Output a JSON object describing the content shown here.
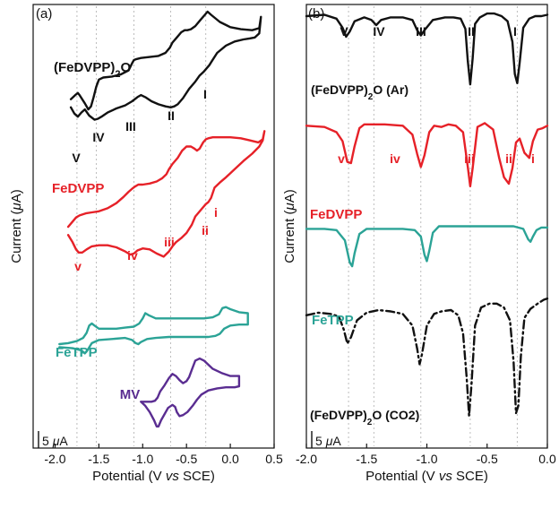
{
  "chart_data": [
    {
      "type": "line",
      "panel_label": "(a)",
      "xlabel": "Potential (V vs SCE)",
      "ylabel": "Current (μA)",
      "xlim": [
        -2.25,
        0.5
      ],
      "x_ticks": [
        "-2.0",
        "-1.5",
        "-1.0",
        "-0.5",
        "0.0",
        "0.5"
      ],
      "x_tick_values": [
        -2.0,
        -1.5,
        -1.0,
        -0.5,
        0.0,
        0.5
      ],
      "scale_bar": "5 μA",
      "grid": "vertical dotted lines at -1.75, -1.53, -1.10, -0.68, -0.28",
      "grid_x": [
        -1.75,
        -1.53,
        -1.1,
        -0.68,
        -0.28
      ],
      "series": [
        {
          "name": "(FeDVPP)2O",
          "color": "#111111",
          "style": "solid",
          "x": [
            -1.82,
            -1.77,
            -1.74,
            -1.72,
            -1.66,
            -1.62,
            -1.59,
            -1.56,
            -1.53,
            -1.5,
            -1.45,
            -1.35,
            -1.25,
            -1.16,
            -1.12,
            -1.1,
            -1.07,
            -1.02,
            -0.92,
            -0.82,
            -0.74,
            -0.69,
            -0.66,
            -0.61,
            -0.56,
            -0.52,
            -0.49,
            -0.45,
            -0.4,
            -0.34,
            -0.29,
            -0.26,
            -0.22,
            -0.12,
            0.0,
            0.12,
            0.25,
            0.33,
            0.35,
            0.33,
            0.28,
            0.22,
            0.15,
            0.05,
            -0.05,
            -0.15,
            -0.21,
            -0.24,
            -0.27,
            -0.3,
            -0.35,
            -0.4,
            -0.47,
            -0.54,
            -0.6,
            -0.64,
            -0.68,
            -0.74,
            -0.82,
            -0.9,
            -0.97,
            -1.02,
            -1.06,
            -1.12,
            -1.2,
            -1.3,
            -1.4,
            -1.47,
            -1.51,
            -1.55,
            -1.61,
            -1.66,
            -1.7,
            -1.74,
            -1.78,
            -1.82
          ],
          "y": [
            0.4,
            0.8,
            1.0,
            0.8,
            0.0,
            -0.6,
            -0.3,
            0.6,
            1.6,
            2.3,
            2.5,
            2.6,
            2.8,
            3.2,
            3.9,
            4.2,
            4.3,
            4.4,
            4.5,
            4.6,
            4.9,
            5.4,
            5.9,
            6.4,
            6.9,
            7.1,
            7.1,
            7.2,
            7.5,
            8.1,
            8.6,
            8.9,
            8.6,
            7.9,
            7.4,
            7.2,
            7.1,
            7.3,
            8.4,
            6.8,
            6.4,
            6.3,
            6.2,
            6.0,
            5.6,
            4.9,
            4.1,
            3.7,
            3.4,
            3.1,
            2.7,
            2.1,
            1.4,
            0.5,
            -0.1,
            -0.3,
            -0.4,
            -0.3,
            -0.1,
            0.2,
            0.6,
            0.8,
            0.6,
            0.2,
            -0.2,
            -0.5,
            -0.9,
            -1.3,
            -1.5,
            -1.6,
            -1.2,
            -0.6,
            -0.9,
            -1.3,
            -1.0,
            -0.4
          ]
        },
        {
          "name": "FeDVPP",
          "color": "#e62128",
          "style": "solid",
          "x": [
            -1.85,
            -1.8,
            -1.76,
            -1.72,
            -1.65,
            -1.58,
            -1.5,
            -1.4,
            -1.3,
            -1.22,
            -1.16,
            -1.12,
            -1.09,
            -1.05,
            -1.0,
            -0.92,
            -0.84,
            -0.78,
            -0.73,
            -0.7,
            -0.66,
            -0.6,
            -0.55,
            -0.5,
            -0.45,
            -0.41,
            -0.38,
            -0.35,
            -0.31,
            -0.28,
            -0.25,
            -0.2,
            -0.12,
            0.0,
            0.12,
            0.22,
            0.32,
            0.37,
            0.39,
            0.37,
            0.33,
            0.25,
            0.15,
            0.05,
            -0.05,
            -0.12,
            -0.18,
            -0.22,
            -0.25,
            -0.28,
            -0.32,
            -0.36,
            -0.4,
            -0.44,
            -0.5,
            -0.56,
            -0.62,
            -0.66,
            -0.7,
            -0.76,
            -0.84,
            -0.92,
            -1.0,
            -1.06,
            -1.1,
            -1.14,
            -1.2,
            -1.3,
            -1.4,
            -1.5,
            -1.58,
            -1.64,
            -1.69,
            -1.73,
            -1.76,
            -1.8,
            -1.85
          ],
          "y": [
            -12.0,
            -11.5,
            -11.1,
            -10.9,
            -10.7,
            -10.6,
            -10.5,
            -10.2,
            -9.7,
            -9.1,
            -8.6,
            -8.3,
            -8.1,
            -7.9,
            -7.9,
            -7.8,
            -7.6,
            -7.3,
            -6.9,
            -6.4,
            -5.9,
            -5.3,
            -4.6,
            -4.2,
            -4.2,
            -4.4,
            -4.6,
            -4.4,
            -3.8,
            -3.5,
            -3.4,
            -3.3,
            -3.3,
            -3.3,
            -3.4,
            -3.6,
            -3.8,
            -3.5,
            -2.7,
            -3.6,
            -4.2,
            -4.9,
            -5.6,
            -6.4,
            -7.2,
            -7.7,
            -8.2,
            -9.2,
            -9.6,
            -9.8,
            -10.2,
            -10.6,
            -11.0,
            -11.8,
            -12.6,
            -13.1,
            -13.5,
            -13.9,
            -14.4,
            -14.9,
            -14.6,
            -14.2,
            -14.1,
            -14.3,
            -14.6,
            -14.7,
            -14.4,
            -14.0,
            -13.8,
            -13.8,
            -13.9,
            -14.2,
            -14.5,
            -14.5,
            -14.2,
            -13.5,
            -12.8
          ]
        },
        {
          "name": "FeTPP",
          "color": "#2ba396",
          "style": "solid",
          "x": [
            -1.95,
            -1.85,
            -1.75,
            -1.68,
            -1.64,
            -1.61,
            -1.58,
            -1.55,
            -1.5,
            -1.4,
            -1.3,
            -1.2,
            -1.1,
            -1.04,
            -1.0,
            -0.97,
            -0.93,
            -0.85,
            -0.7,
            -0.5,
            -0.3,
            -0.2,
            -0.13,
            -0.09,
            -0.05,
            0.0,
            0.1,
            0.2,
            0.2,
            0.1,
            0.0,
            -0.07,
            -0.12,
            -0.17,
            -0.25,
            -0.4,
            -0.55,
            -0.7,
            -0.85,
            -0.95,
            -1.02,
            -1.05,
            -1.08,
            -1.12,
            -1.2,
            -1.35,
            -1.5,
            -1.58,
            -1.63,
            -1.66,
            -1.7,
            -1.8,
            -1.95
          ],
          "y": [
            -23.4,
            -23.3,
            -23.1,
            -22.8,
            -22.3,
            -21.6,
            -21.4,
            -21.6,
            -21.9,
            -21.9,
            -21.9,
            -21.8,
            -21.7,
            -21.4,
            -20.9,
            -20.4,
            -20.6,
            -20.9,
            -20.9,
            -20.9,
            -20.9,
            -20.8,
            -20.5,
            -19.9,
            -19.8,
            -20.0,
            -20.3,
            -20.4,
            -21.5,
            -21.5,
            -21.6,
            -21.9,
            -22.4,
            -22.6,
            -22.7,
            -22.7,
            -22.7,
            -22.7,
            -22.8,
            -22.9,
            -23.2,
            -23.4,
            -23.3,
            -23.0,
            -22.8,
            -22.9,
            -23.0,
            -23.3,
            -24.0,
            -24.3,
            -24.0,
            -23.8,
            -23.7
          ]
        },
        {
          "name": "MV",
          "color": "#5a2d91",
          "style": "solid",
          "x": [
            -1.02,
            -0.97,
            -0.92,
            -0.87,
            -0.84,
            -0.82,
            -0.79,
            -0.75,
            -0.71,
            -0.66,
            -0.63,
            -0.61,
            -0.58,
            -0.54,
            -0.49,
            -0.43,
            -0.38,
            -0.33,
            -0.25,
            -0.15,
            -0.05,
            0.05,
            0.1,
            0.1,
            0.0,
            -0.1,
            -0.2,
            -0.3,
            -0.35,
            -0.4,
            -0.44,
            -0.47,
            -0.5,
            -0.54,
            -0.58,
            -0.62,
            -0.66,
            -0.7,
            -0.75,
            -0.8,
            -0.83,
            -0.86,
            -0.9,
            -0.95,
            -1.02
          ],
          "y": [
            -29.0,
            -29.4,
            -30.0,
            -30.8,
            -31.4,
            -31.4,
            -30.8,
            -30.2,
            -29.6,
            -29.3,
            -29.5,
            -30.0,
            -30.4,
            -30.3,
            -30.0,
            -29.4,
            -28.8,
            -28.3,
            -27.9,
            -27.7,
            -27.6,
            -27.6,
            -27.5,
            -26.5,
            -26.5,
            -26.2,
            -25.8,
            -25.0,
            -24.8,
            -25.0,
            -25.9,
            -26.6,
            -27.0,
            -27.2,
            -26.9,
            -26.5,
            -26.3,
            -26.7,
            -27.4,
            -28.0,
            -28.6,
            -28.9,
            -29.0,
            -29.0,
            -29.0
          ]
        }
      ],
      "annotations": [
        {
          "text": "(FeDVPP)2O",
          "color": "#111111"
        },
        {
          "text": "I",
          "color": "#111111"
        },
        {
          "text": "II",
          "color": "#111111"
        },
        {
          "text": "III",
          "color": "#111111"
        },
        {
          "text": "IV",
          "color": "#111111"
        },
        {
          "text": "V",
          "color": "#111111"
        },
        {
          "text": "FeDVPP",
          "color": "#e62128"
        },
        {
          "text": "i",
          "color": "#e62128"
        },
        {
          "text": "ii",
          "color": "#e62128"
        },
        {
          "text": "iii",
          "color": "#e62128"
        },
        {
          "text": "iv",
          "color": "#e62128"
        },
        {
          "text": "v",
          "color": "#e62128"
        },
        {
          "text": "FeTPP",
          "color": "#2ba396"
        },
        {
          "text": "MV",
          "color": "#5a2d91"
        }
      ]
    },
    {
      "type": "line",
      "panel_label": "(b)",
      "xlabel": "Potential (V vs SCE)",
      "ylabel": "Current (μA)",
      "xlim": [
        -2.0,
        0.0
      ],
      "x_ticks": [
        "-2.0",
        "-1.5",
        "-1.0",
        "-0.5",
        "0.0"
      ],
      "x_tick_values": [
        -2.0,
        -1.5,
        -1.0,
        -0.5,
        0.0
      ],
      "scale_bar": "5 μA",
      "grid": "vertical dotted lines at -1.65, -1.44, -1.05, -0.64, -0.25",
      "grid_x": [
        -1.65,
        -1.44,
        -1.05,
        -0.64,
        -0.25
      ],
      "series": [
        {
          "name": "(FeDVPP)2O (Ar)",
          "color": "#111111",
          "style": "solid",
          "x": [
            -2.0,
            -1.85,
            -1.75,
            -1.7,
            -1.67,
            -1.64,
            -1.6,
            -1.52,
            -1.46,
            -1.42,
            -1.38,
            -1.3,
            -1.2,
            -1.12,
            -1.08,
            -1.05,
            -1.02,
            -0.95,
            -0.85,
            -0.78,
            -0.72,
            -0.68,
            -0.66,
            -0.64,
            -0.62,
            -0.6,
            -0.56,
            -0.5,
            -0.44,
            -0.38,
            -0.33,
            -0.29,
            -0.27,
            -0.25,
            -0.23,
            -0.2,
            -0.15,
            -0.1,
            -0.05,
            0.0
          ],
          "y": [
            0.0,
            0.1,
            -0.2,
            -0.9,
            -1.6,
            -1.2,
            -0.4,
            -0.1,
            -0.3,
            -0.7,
            -0.3,
            -0.1,
            -0.1,
            -0.3,
            -1.1,
            -1.5,
            -1.1,
            -0.3,
            -0.1,
            -0.1,
            -0.2,
            -1.0,
            -3.5,
            -5.3,
            -3.3,
            -0.6,
            -0.1,
            0.2,
            0.2,
            0.0,
            -0.4,
            -2.0,
            -4.5,
            -5.2,
            -3.6,
            -0.9,
            -0.2,
            0.0,
            0.0,
            0.1
          ]
        },
        {
          "name": "FeDVPP",
          "color": "#e62128",
          "style": "solid",
          "x": [
            -2.0,
            -1.85,
            -1.75,
            -1.7,
            -1.66,
            -1.63,
            -1.6,
            -1.56,
            -1.52,
            -1.45,
            -1.35,
            -1.2,
            -1.12,
            -1.08,
            -1.05,
            -1.02,
            -0.98,
            -0.94,
            -0.88,
            -0.82,
            -0.76,
            -0.7,
            -0.66,
            -0.64,
            -0.62,
            -0.58,
            -0.52,
            -0.45,
            -0.4,
            -0.36,
            -0.32,
            -0.29,
            -0.26,
            -0.23,
            -0.19,
            -0.15,
            -0.12,
            -0.08,
            -0.04,
            0.0
          ],
          "y": [
            -8.5,
            -8.6,
            -9.0,
            -9.7,
            -11.3,
            -11.4,
            -10.1,
            -8.7,
            -8.4,
            -8.4,
            -8.4,
            -8.5,
            -9.2,
            -10.7,
            -11.7,
            -10.8,
            -9.0,
            -8.5,
            -8.6,
            -8.4,
            -8.5,
            -9.0,
            -11.7,
            -13.2,
            -11.8,
            -8.6,
            -8.3,
            -8.8,
            -11.0,
            -12.5,
            -13.0,
            -11.8,
            -9.8,
            -9.5,
            -10.6,
            -11.0,
            -9.7,
            -8.8,
            -8.7,
            -8.5
          ]
        },
        {
          "name": "FeTPP",
          "color": "#2ba396",
          "style": "solid",
          "x": [
            -2.0,
            -1.85,
            -1.75,
            -1.68,
            -1.64,
            -1.62,
            -1.6,
            -1.56,
            -1.5,
            -1.35,
            -1.2,
            -1.1,
            -1.05,
            -1.02,
            -1.0,
            -0.98,
            -0.95,
            -0.9,
            -0.8,
            -0.6,
            -0.4,
            -0.28,
            -0.2,
            -0.16,
            -0.14,
            -0.12,
            -0.09,
            -0.05,
            0.0
          ],
          "y": [
            -16.5,
            -16.5,
            -16.6,
            -17.4,
            -19.1,
            -19.4,
            -18.4,
            -16.9,
            -16.5,
            -16.5,
            -16.5,
            -16.6,
            -17.1,
            -18.5,
            -19.0,
            -18.2,
            -16.8,
            -16.3,
            -16.3,
            -16.3,
            -16.3,
            -16.3,
            -16.5,
            -17.3,
            -17.5,
            -17.1,
            -16.6,
            -16.4,
            -16.4
          ]
        },
        {
          "name": "(FeDVPP)2O (CO2)",
          "color": "#111111",
          "style": "dashdot",
          "x": [
            -2.0,
            -1.9,
            -1.8,
            -1.73,
            -1.69,
            -1.66,
            -1.63,
            -1.58,
            -1.5,
            -1.4,
            -1.3,
            -1.2,
            -1.12,
            -1.08,
            -1.06,
            -1.04,
            -1.0,
            -0.94,
            -0.88,
            -0.8,
            -0.74,
            -0.7,
            -0.67,
            -0.65,
            -0.63,
            -0.6,
            -0.55,
            -0.48,
            -0.42,
            -0.36,
            -0.31,
            -0.28,
            -0.26,
            -0.24,
            -0.22,
            -0.19,
            -0.14,
            -0.08,
            -0.03,
            0.0
          ],
          "y": [
            -23.2,
            -23.0,
            -23.1,
            -23.3,
            -24.3,
            -25.4,
            -24.9,
            -23.6,
            -23.0,
            -22.8,
            -22.9,
            -23.1,
            -24.0,
            -25.8,
            -27.0,
            -26.2,
            -24.0,
            -23.1,
            -22.9,
            -22.8,
            -23.2,
            -24.6,
            -28.0,
            -31.0,
            -28.6,
            -24.0,
            -22.6,
            -22.3,
            -22.3,
            -22.6,
            -23.6,
            -26.8,
            -30.8,
            -30.2,
            -26.4,
            -23.4,
            -22.7,
            -22.3,
            -22.0,
            -21.9
          ]
        }
      ],
      "annotations": [
        {
          "text": "V",
          "color": "#111111"
        },
        {
          "text": "IV",
          "color": "#111111"
        },
        {
          "text": "III",
          "color": "#111111"
        },
        {
          "text": "II",
          "color": "#111111"
        },
        {
          "text": "I",
          "color": "#111111"
        },
        {
          "text": "(FeDVPP)2O (Ar)",
          "color": "#111111"
        },
        {
          "text": "v",
          "color": "#e62128"
        },
        {
          "text": "iv",
          "color": "#e62128"
        },
        {
          "text": "iii",
          "color": "#e62128"
        },
        {
          "text": "ii",
          "color": "#e62128"
        },
        {
          "text": "i",
          "color": "#e62128"
        },
        {
          "text": "FeDVPP",
          "color": "#e62128"
        },
        {
          "text": "FeTPP",
          "color": "#2ba396"
        },
        {
          "text": "(FeDVPP)2O (CO2)",
          "color": "#111111"
        }
      ]
    }
  ]
}
